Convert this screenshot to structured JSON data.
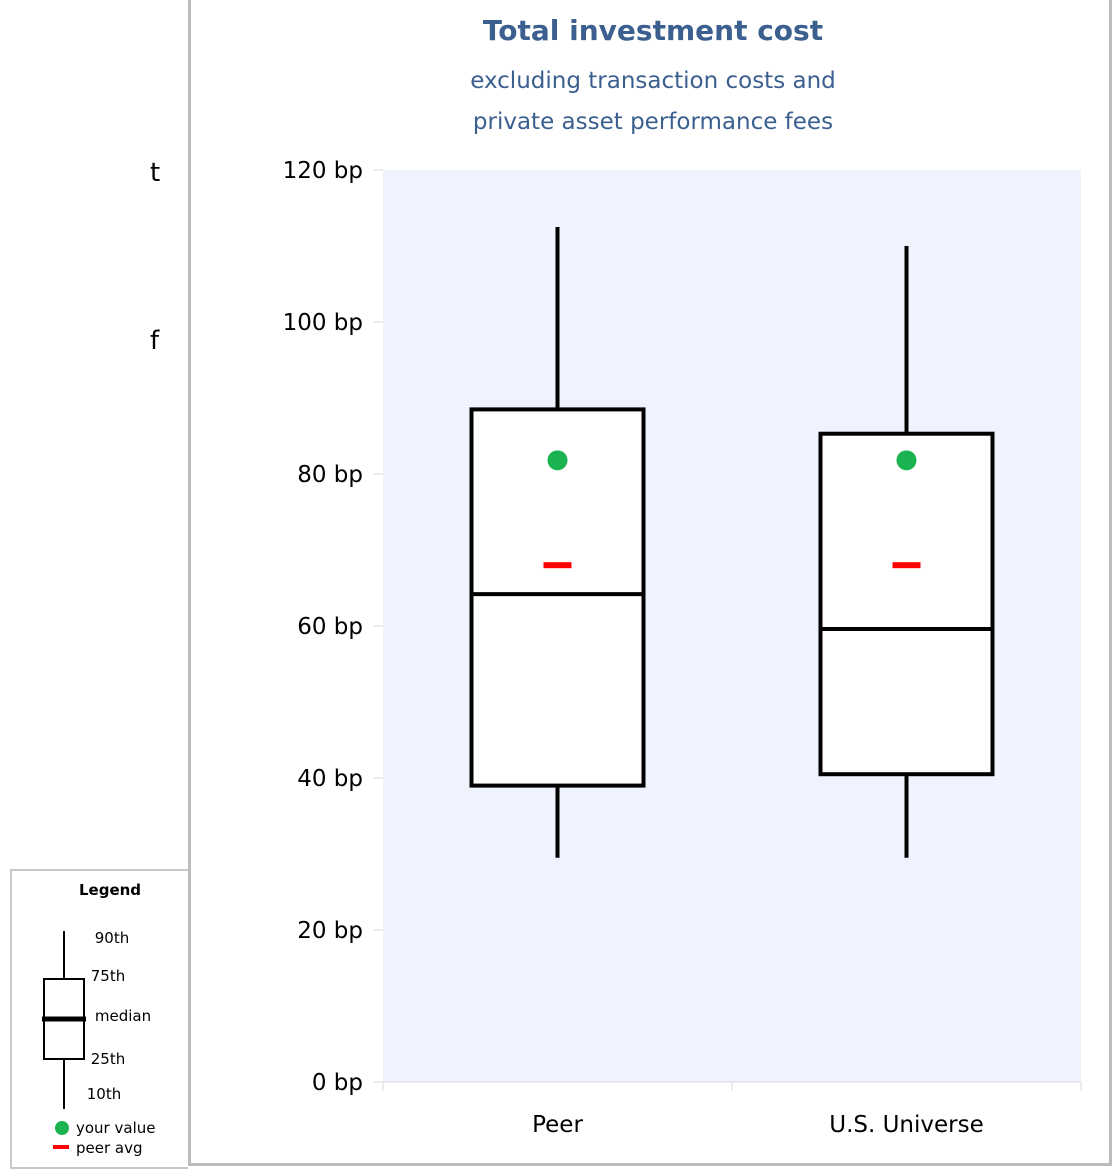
{
  "side_fragments": [
    "t",
    "f"
  ],
  "colors": {
    "title": "#3b5f8e",
    "plot_background": "#eef3fd",
    "your_value": "#1bb250",
    "peer_avg": "#ff0000",
    "box_stroke": "#000000"
  },
  "chart_data": {
    "type": "box",
    "title": "Total investment cost",
    "subtitle_lines": [
      "excluding transaction costs and",
      "private asset performance fees"
    ],
    "unit": "bp",
    "ylim": [
      0,
      120
    ],
    "yticks": [
      "0 bp",
      "20 bp",
      "40 bp",
      "60 bp",
      "80 bp",
      "100 bp",
      "120 bp"
    ],
    "grid": false,
    "categories": [
      "Peer",
      "U.S. Universe"
    ],
    "series": [
      {
        "p10": 29.5,
        "p25": 39,
        "median": 64.2,
        "p75": 88.5,
        "p90": 112.5,
        "your_value": 81.8,
        "peer_avg": 68
      },
      {
        "p10": 29.5,
        "p25": 40.5,
        "median": 59.6,
        "p75": 85.3,
        "p90": 110,
        "your_value": 81.8,
        "peer_avg": 68
      }
    ]
  },
  "legend": {
    "title": "Legend",
    "labels": [
      "90th",
      "75th",
      "median",
      "25th",
      "10th"
    ],
    "your_value_label": "your value",
    "peer_avg_label": "peer avg"
  }
}
